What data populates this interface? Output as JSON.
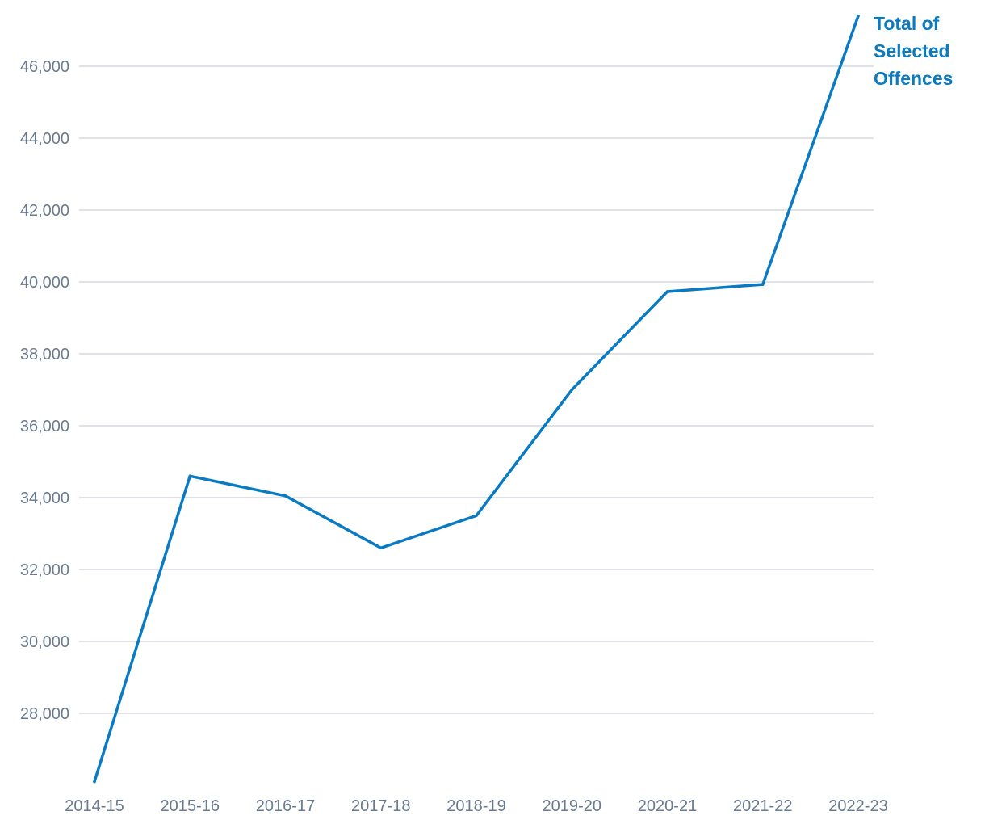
{
  "chart_data": {
    "type": "line",
    "title": "",
    "xlabel": "",
    "ylabel": "",
    "categories": [
      "2014-15",
      "2015-16",
      "2016-17",
      "2017-18",
      "2018-19",
      "2019-20",
      "2020-21",
      "2021-22",
      "2022-23"
    ],
    "series": [
      {
        "name": "Total of Selected Offences",
        "name_lines": [
          "Total of",
          "Selected",
          "Offences"
        ],
        "color": "#0a7bc2",
        "values": [
          26100,
          34600,
          34050,
          32600,
          33500,
          37000,
          39730,
          39930,
          47400
        ]
      }
    ],
    "yticks": [
      28000,
      30000,
      32000,
      34000,
      36000,
      38000,
      40000,
      42000,
      44000,
      46000
    ],
    "ytick_labels": [
      "28,000",
      "30,000",
      "32,000",
      "34,000",
      "36,000",
      "38,000",
      "40,000",
      "42,000",
      "44,000",
      "46,000"
    ],
    "ylim": [
      26100,
      47400
    ],
    "grid": true,
    "legend": "direct label at end of line (top-right)",
    "colors": {
      "gridline": "#d5d9e0",
      "tick_text": "#6b7a8f"
    }
  }
}
